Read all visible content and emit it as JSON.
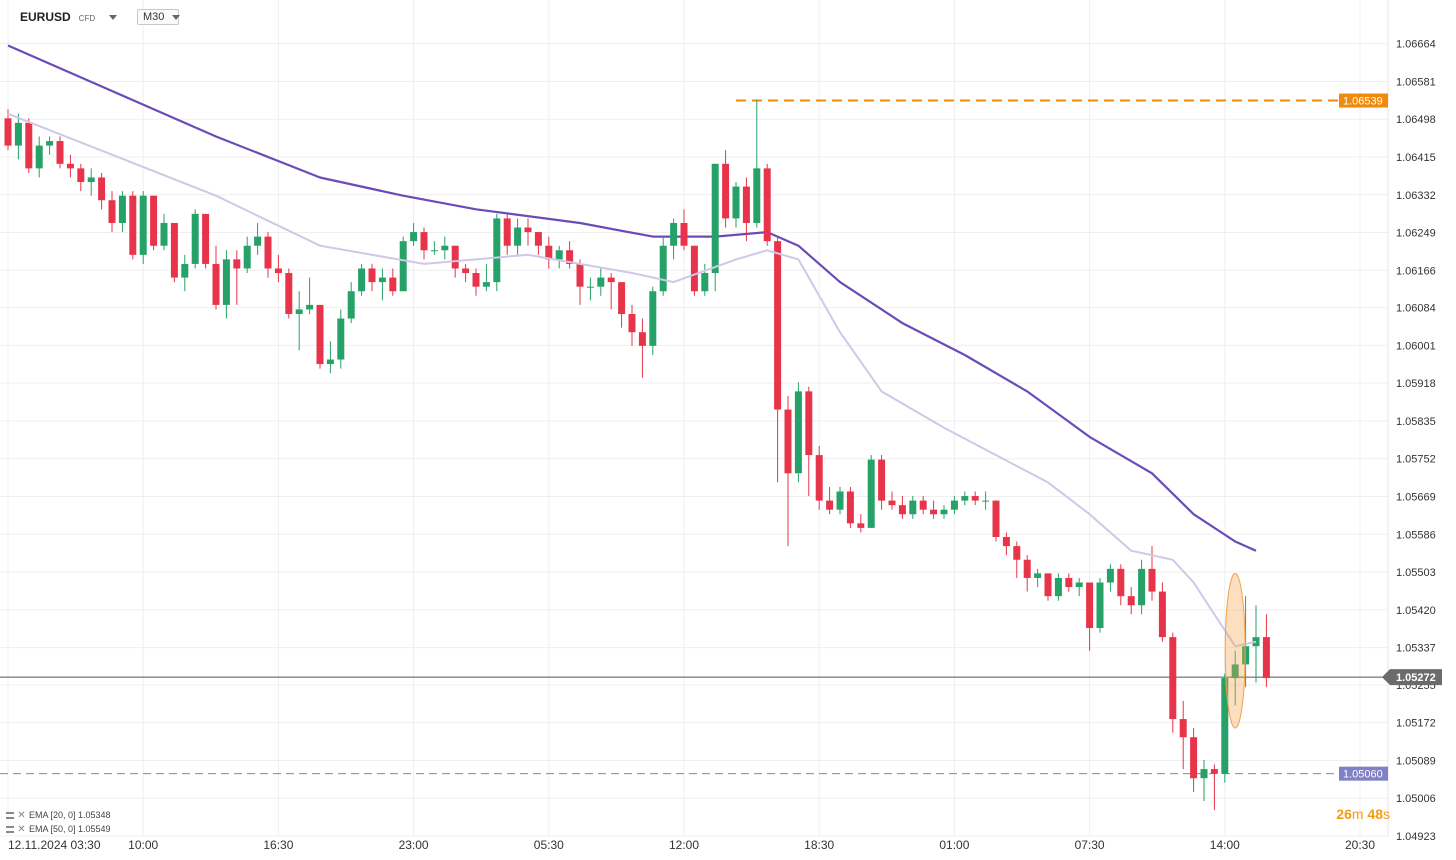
{
  "header": {
    "symbol": "EURUSD",
    "instrument_type": "CFD",
    "timeframe": "M30"
  },
  "legend": [
    {
      "label": "EMA [20, 0] 1.05348",
      "color": "#cfc8e6"
    },
    {
      "label": "EMA [50, 0] 1.05549",
      "color": "#6a4bb8"
    }
  ],
  "countdown": {
    "minutes": "26",
    "m": "m",
    "seconds": "48",
    "s": "s"
  },
  "colors": {
    "up": "#26a269",
    "down": "#e8344a",
    "ema20": "#cfc8e6",
    "ema50": "#6a4bb8",
    "high_line": "#f08a0c",
    "low_line": "#8080c8",
    "price_line": "#555555",
    "highlight": "#f5a04a"
  },
  "chart_data": {
    "type": "candlestick",
    "timeframe": "M30",
    "y_ticks": [
      "1.06664",
      "1.06581",
      "1.06498",
      "1.06415",
      "1.06332",
      "1.06249",
      "1.06166",
      "1.06084",
      "1.06001",
      "1.05918",
      "1.05835",
      "1.05752",
      "1.05669",
      "1.05586",
      "1.05503",
      "1.05420",
      "1.05337",
      "1.05255",
      "1.05172",
      "1.05089",
      "1.05006",
      "1.04923"
    ],
    "ylim": [
      1.04923,
      1.06716
    ],
    "x_ticks": [
      {
        "label": "12.11.2024 03:30",
        "i": 0
      },
      {
        "label": "10:00",
        "i": 13
      },
      {
        "label": "16:30",
        "i": 26
      },
      {
        "label": "23:00",
        "i": 39
      },
      {
        "label": "05:30",
        "i": 52
      },
      {
        "label": "12:00",
        "i": 65
      },
      {
        "label": "18:30",
        "i": 78
      },
      {
        "label": "01:00",
        "i": 91
      },
      {
        "label": "07:30",
        "i": 104
      },
      {
        "label": "14:00",
        "i": 117
      },
      {
        "label": "20:30",
        "i": 130
      }
    ],
    "current_price": "1.05272",
    "high_level": "1.06539",
    "low_level": "1.05060",
    "highlight_candle_index": 118,
    "candles": [
      [
        1.065,
        1.0652,
        1.0643,
        1.0644
      ],
      [
        1.0644,
        1.0651,
        1.0641,
        1.0649
      ],
      [
        1.0649,
        1.065,
        1.0638,
        1.0639
      ],
      [
        1.0639,
        1.0646,
        1.0637,
        1.0644
      ],
      [
        1.0644,
        1.0646,
        1.0642,
        1.0645
      ],
      [
        1.0645,
        1.0646,
        1.0639,
        1.064
      ],
      [
        1.064,
        1.0642,
        1.0637,
        1.0639
      ],
      [
        1.0639,
        1.064,
        1.0634,
        1.0636
      ],
      [
        1.0636,
        1.0639,
        1.0633,
        1.0637
      ],
      [
        1.0637,
        1.0638,
        1.063,
        1.0632
      ],
      [
        1.0632,
        1.0634,
        1.0625,
        1.0627
      ],
      [
        1.0627,
        1.0634,
        1.0625,
        1.0633
      ],
      [
        1.0633,
        1.0634,
        1.0619,
        1.062
      ],
      [
        1.062,
        1.0634,
        1.0618,
        1.0633
      ],
      [
        1.0633,
        1.0633,
        1.0621,
        1.0622
      ],
      [
        1.0622,
        1.0629,
        1.0621,
        1.0627
      ],
      [
        1.0627,
        1.0627,
        1.0614,
        1.0615
      ],
      [
        1.0615,
        1.062,
        1.0612,
        1.0618
      ],
      [
        1.0618,
        1.063,
        1.0617,
        1.0629
      ],
      [
        1.0629,
        1.0629,
        1.0617,
        1.0618
      ],
      [
        1.0618,
        1.0622,
        1.0608,
        1.0609
      ],
      [
        1.0609,
        1.0621,
        1.0606,
        1.0619
      ],
      [
        1.0619,
        1.0621,
        1.0609,
        1.0617
      ],
      [
        1.0617,
        1.0624,
        1.0616,
        1.0622
      ],
      [
        1.0622,
        1.0627,
        1.062,
        1.0624
      ],
      [
        1.0624,
        1.0625,
        1.0615,
        1.0617
      ],
      [
        1.0617,
        1.062,
        1.0614,
        1.0616
      ],
      [
        1.0616,
        1.0617,
        1.0606,
        1.0607
      ],
      [
        1.0607,
        1.0612,
        1.0599,
        1.0608
      ],
      [
        1.0608,
        1.0615,
        1.0607,
        1.0609
      ],
      [
        1.0609,
        1.0609,
        1.0595,
        1.0596
      ],
      [
        1.0596,
        1.0601,
        1.0594,
        1.0597
      ],
      [
        1.0597,
        1.0608,
        1.0595,
        1.0606
      ],
      [
        1.0606,
        1.0614,
        1.0605,
        1.0612
      ],
      [
        1.0612,
        1.0618,
        1.0611,
        1.0617
      ],
      [
        1.0617,
        1.0618,
        1.0612,
        1.0614
      ],
      [
        1.0614,
        1.0617,
        1.061,
        1.0615
      ],
      [
        1.0615,
        1.0617,
        1.0611,
        1.0612
      ],
      [
        1.0612,
        1.0624,
        1.0612,
        1.0623
      ],
      [
        1.0623,
        1.0627,
        1.0622,
        1.0625
      ],
      [
        1.0625,
        1.0626,
        1.0619,
        1.0621
      ],
      [
        1.0621,
        1.0623,
        1.062,
        1.0621
      ],
      [
        1.0621,
        1.0624,
        1.0619,
        1.0622
      ],
      [
        1.0622,
        1.0622,
        1.0615,
        1.0617
      ],
      [
        1.0617,
        1.0618,
        1.0614,
        1.0616
      ],
      [
        1.0616,
        1.0617,
        1.0611,
        1.0613
      ],
      [
        1.0613,
        1.0618,
        1.0612,
        1.0614
      ],
      [
        1.0614,
        1.0629,
        1.0612,
        1.0628
      ],
      [
        1.0628,
        1.0629,
        1.062,
        1.0622
      ],
      [
        1.0622,
        1.0628,
        1.062,
        1.0626
      ],
      [
        1.0626,
        1.0628,
        1.0622,
        1.0625
      ],
      [
        1.0625,
        1.0625,
        1.062,
        1.0622
      ],
      [
        1.0622,
        1.0624,
        1.0617,
        1.0619
      ],
      [
        1.0619,
        1.0622,
        1.0617,
        1.0621
      ],
      [
        1.0621,
        1.0623,
        1.0617,
        1.0618
      ],
      [
        1.0618,
        1.0619,
        1.0609,
        1.0613
      ],
      [
        1.0613,
        1.0615,
        1.061,
        1.0613
      ],
      [
        1.0613,
        1.0617,
        1.0611,
        1.0615
      ],
      [
        1.0615,
        1.0616,
        1.0608,
        1.0614
      ],
      [
        1.0614,
        1.0614,
        1.0604,
        1.0607
      ],
      [
        1.0607,
        1.0609,
        1.06,
        1.0603
      ],
      [
        1.0603,
        1.0606,
        1.0593,
        1.06
      ],
      [
        1.06,
        1.0613,
        1.0598,
        1.0612
      ],
      [
        1.0612,
        1.0624,
        1.0611,
        1.0622
      ],
      [
        1.0622,
        1.0628,
        1.0619,
        1.0627
      ],
      [
        1.0627,
        1.063,
        1.0621,
        1.0622
      ],
      [
        1.0622,
        1.0622,
        1.0611,
        1.0612
      ],
      [
        1.0612,
        1.0618,
        1.0611,
        1.0616
      ],
      [
        1.0616,
        1.064,
        1.0612,
        1.064
      ],
      [
        1.064,
        1.0643,
        1.0626,
        1.0628
      ],
      [
        1.0628,
        1.0636,
        1.0626,
        1.0635
      ],
      [
        1.0635,
        1.0637,
        1.0623,
        1.0627
      ],
      [
        1.0627,
        1.0654,
        1.0626,
        1.0639
      ],
      [
        1.0639,
        1.064,
        1.0622,
        1.0623
      ],
      [
        1.0623,
        1.0624,
        1.057,
        1.0586
      ],
      [
        1.0586,
        1.0589,
        1.0556,
        1.0572
      ],
      [
        1.0572,
        1.0592,
        1.057,
        1.059
      ],
      [
        1.059,
        1.0591,
        1.0567,
        1.0576
      ],
      [
        1.0576,
        1.0578,
        1.0564,
        1.0566
      ],
      [
        1.0566,
        1.0569,
        1.0563,
        1.0564
      ],
      [
        1.0564,
        1.0569,
        1.0563,
        1.0568
      ],
      [
        1.0568,
        1.0569,
        1.056,
        1.0561
      ],
      [
        1.0561,
        1.0563,
        1.0559,
        1.056
      ],
      [
        1.056,
        1.0576,
        1.056,
        1.0575
      ],
      [
        1.0575,
        1.0576,
        1.0564,
        1.0566
      ],
      [
        1.0566,
        1.0568,
        1.0564,
        1.0565
      ],
      [
        1.0565,
        1.0567,
        1.0562,
        1.0563
      ],
      [
        1.0563,
        1.0567,
        1.0562,
        1.0566
      ],
      [
        1.0566,
        1.0567,
        1.0563,
        1.0564
      ],
      [
        1.0564,
        1.0566,
        1.0562,
        1.0563
      ],
      [
        1.0563,
        1.0565,
        1.0562,
        1.0564
      ],
      [
        1.0564,
        1.0567,
        1.0563,
        1.0566
      ],
      [
        1.0566,
        1.0568,
        1.0565,
        1.0567
      ],
      [
        1.0567,
        1.0568,
        1.0565,
        1.0566
      ],
      [
        1.0566,
        1.0568,
        1.0564,
        1.0566
      ],
      [
        1.0566,
        1.0566,
        1.0557,
        1.0558
      ],
      [
        1.0558,
        1.0559,
        1.0554,
        1.0556
      ],
      [
        1.0556,
        1.0557,
        1.0549,
        1.0553
      ],
      [
        1.0553,
        1.0554,
        1.0546,
        1.0549
      ],
      [
        1.0549,
        1.0551,
        1.0547,
        1.055
      ],
      [
        1.055,
        1.055,
        1.0544,
        1.0545
      ],
      [
        1.0545,
        1.055,
        1.0544,
        1.0549
      ],
      [
        1.0549,
        1.055,
        1.0546,
        1.0547
      ],
      [
        1.0547,
        1.0549,
        1.0545,
        1.0548
      ],
      [
        1.0548,
        1.0548,
        1.0533,
        1.0538
      ],
      [
        1.0538,
        1.0549,
        1.0537,
        1.0548
      ],
      [
        1.0548,
        1.0552,
        1.0546,
        1.0551
      ],
      [
        1.0551,
        1.0552,
        1.0543,
        1.0545
      ],
      [
        1.0545,
        1.0547,
        1.0541,
        1.0543
      ],
      [
        1.0543,
        1.0553,
        1.0541,
        1.0551
      ],
      [
        1.0551,
        1.0556,
        1.0544,
        1.0546
      ],
      [
        1.0546,
        1.0548,
        1.0535,
        1.0536
      ],
      [
        1.0536,
        1.0537,
        1.0515,
        1.0518
      ],
      [
        1.0518,
        1.0522,
        1.0507,
        1.0514
      ],
      [
        1.0514,
        1.0516,
        1.0502,
        1.0505
      ],
      [
        1.0505,
        1.0509,
        1.05,
        1.0507
      ],
      [
        1.0507,
        1.0508,
        1.0498,
        1.0506
      ],
      [
        1.0506,
        1.0528,
        1.0504,
        1.0527
      ],
      [
        1.0527,
        1.0533,
        1.0521,
        1.053
      ],
      [
        1.053,
        1.0545,
        1.0525,
        1.0534
      ],
      [
        1.0534,
        1.0543,
        1.0526,
        1.0536
      ],
      [
        1.0536,
        1.0541,
        1.0525,
        1.0527
      ]
    ],
    "ema20": [
      [
        0,
        1.0651
      ],
      [
        10,
        1.0642
      ],
      [
        20,
        1.0633
      ],
      [
        30,
        1.0622
      ],
      [
        40,
        1.0618
      ],
      [
        50,
        1.062
      ],
      [
        60,
        1.0616
      ],
      [
        64,
        1.0614
      ],
      [
        70,
        1.0619
      ],
      [
        73,
        1.0621
      ],
      [
        76,
        1.0619
      ],
      [
        80,
        1.0603
      ],
      [
        84,
        1.059
      ],
      [
        90,
        1.0582
      ],
      [
        95,
        1.0576
      ],
      [
        100,
        1.057
      ],
      [
        104,
        1.0563
      ],
      [
        108,
        1.0555
      ],
      [
        112,
        1.0553
      ],
      [
        114,
        1.0548
      ],
      [
        118,
        1.0534
      ],
      [
        120,
        1.0535
      ]
    ],
    "ema50": [
      [
        0,
        1.0666
      ],
      [
        10,
        1.0656
      ],
      [
        20,
        1.0646
      ],
      [
        30,
        1.0637
      ],
      [
        38,
        1.0633
      ],
      [
        45,
        1.063
      ],
      [
        55,
        1.0627
      ],
      [
        62,
        1.0624
      ],
      [
        68,
        1.0624
      ],
      [
        73,
        1.0625
      ],
      [
        76,
        1.0622
      ],
      [
        80,
        1.0614
      ],
      [
        86,
        1.0605
      ],
      [
        92,
        1.0598
      ],
      [
        98,
        1.059
      ],
      [
        104,
        1.058
      ],
      [
        110,
        1.0572
      ],
      [
        114,
        1.0563
      ],
      [
        118,
        1.0557
      ],
      [
        120,
        1.0555
      ]
    ]
  }
}
